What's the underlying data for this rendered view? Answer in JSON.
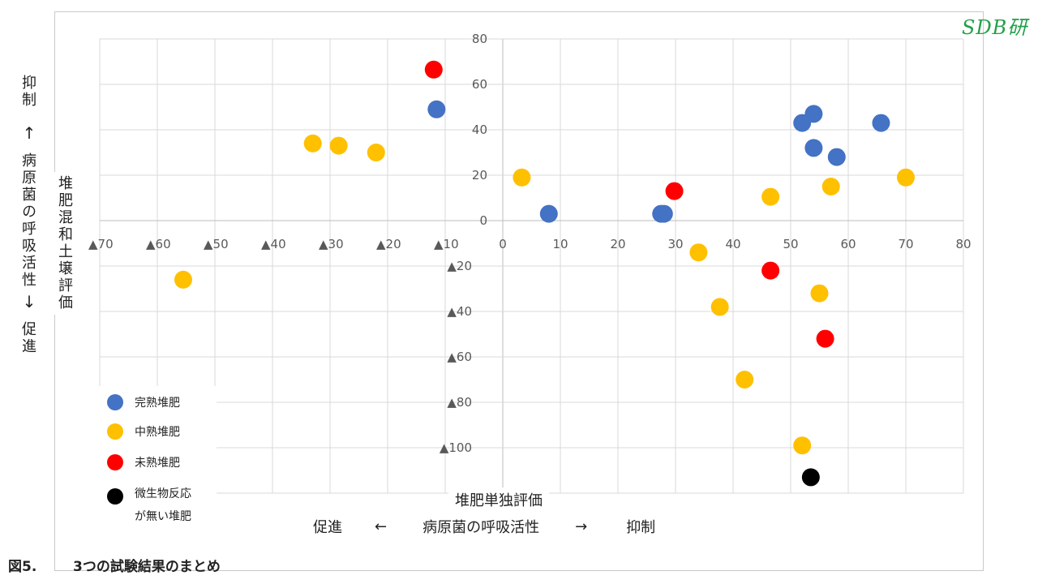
{
  "brand": "SDB研",
  "caption": {
    "figure_no": "図5.",
    "title": "3つの試験結果のまとめ"
  },
  "y_side_label": {
    "top": "抑制",
    "arrow_up": "↑",
    "middle": "病原菌の呼吸活性",
    "arrow_down": "↓",
    "bottom": "促進"
  },
  "x_side_label": {
    "left": "促進",
    "arrow_left": "←",
    "middle": "病原菌の呼吸活性",
    "arrow_right": "→",
    "right": "抑制"
  },
  "chart_data": {
    "type": "scatter",
    "xlabel": "堆肥単独評価",
    "ylabel": "堆肥混和土壌評価",
    "xlim": [
      -70,
      80
    ],
    "ylim": [
      -120,
      80
    ],
    "grid": true,
    "legend_position": "bottom-left",
    "x_ticks": [
      {
        "value": -70,
        "label": "▲70"
      },
      {
        "value": -60,
        "label": "▲60"
      },
      {
        "value": -50,
        "label": "▲50"
      },
      {
        "value": -40,
        "label": "▲40"
      },
      {
        "value": -30,
        "label": "▲30"
      },
      {
        "value": -20,
        "label": "▲20"
      },
      {
        "value": -10,
        "label": "▲10"
      },
      {
        "value": 0,
        "label": "0"
      },
      {
        "value": 10,
        "label": "10"
      },
      {
        "value": 20,
        "label": "20"
      },
      {
        "value": 30,
        "label": "30"
      },
      {
        "value": 40,
        "label": "40"
      },
      {
        "value": 50,
        "label": "50"
      },
      {
        "value": 60,
        "label": "60"
      },
      {
        "value": 70,
        "label": "70"
      },
      {
        "value": 80,
        "label": "80"
      }
    ],
    "y_ticks": [
      {
        "value": 80,
        "label": "80"
      },
      {
        "value": 60,
        "label": "60"
      },
      {
        "value": 40,
        "label": "40"
      },
      {
        "value": 20,
        "label": "20"
      },
      {
        "value": 0,
        "label": "0"
      },
      {
        "value": -20,
        "label": "▲20"
      },
      {
        "value": -40,
        "label": "▲40"
      },
      {
        "value": -60,
        "label": "▲60"
      },
      {
        "value": -80,
        "label": "▲80"
      },
      {
        "value": -100,
        "label": "▲100"
      }
    ],
    "series": [
      {
        "name": "完熟堆肥",
        "color": "#4472c4",
        "points": [
          [
            -11.5,
            49
          ],
          [
            8,
            3
          ],
          [
            27.5,
            3
          ],
          [
            28,
            3
          ],
          [
            52,
            43
          ],
          [
            54,
            47
          ],
          [
            54,
            32
          ],
          [
            58,
            28
          ],
          [
            65.7,
            43
          ]
        ]
      },
      {
        "name": "中熟堆肥",
        "color": "#ffc000",
        "points": [
          [
            -55.5,
            -26
          ],
          [
            -33,
            34
          ],
          [
            -28.5,
            33
          ],
          [
            -22,
            30
          ],
          [
            3.3,
            19
          ],
          [
            34,
            -14
          ],
          [
            37.7,
            -38
          ],
          [
            42,
            -70
          ],
          [
            46.5,
            10.5
          ],
          [
            52,
            -99
          ],
          [
            55,
            -32
          ],
          [
            57,
            15
          ],
          [
            70,
            19
          ]
        ]
      },
      {
        "name": "未熟堆肥",
        "color": "#ff0000",
        "points": [
          [
            -12,
            66.5
          ],
          [
            29.8,
            13
          ],
          [
            46.5,
            -22
          ],
          [
            56,
            -52
          ]
        ]
      },
      {
        "name": "微生物反応が無い堆肥",
        "color": "#000000",
        "points": [
          [
            53.5,
            -113
          ]
        ]
      }
    ]
  },
  "legend": {
    "items": [
      {
        "lines": [
          "完熟堆肥"
        ],
        "color": "#4472c4"
      },
      {
        "lines": [
          "中熟堆肥"
        ],
        "color": "#ffc000"
      },
      {
        "lines": [
          "未熟堆肥"
        ],
        "color": "#ff0000"
      },
      {
        "lines": [
          "微生物反応",
          "が無い堆肥"
        ],
        "color": "#000000"
      }
    ]
  }
}
